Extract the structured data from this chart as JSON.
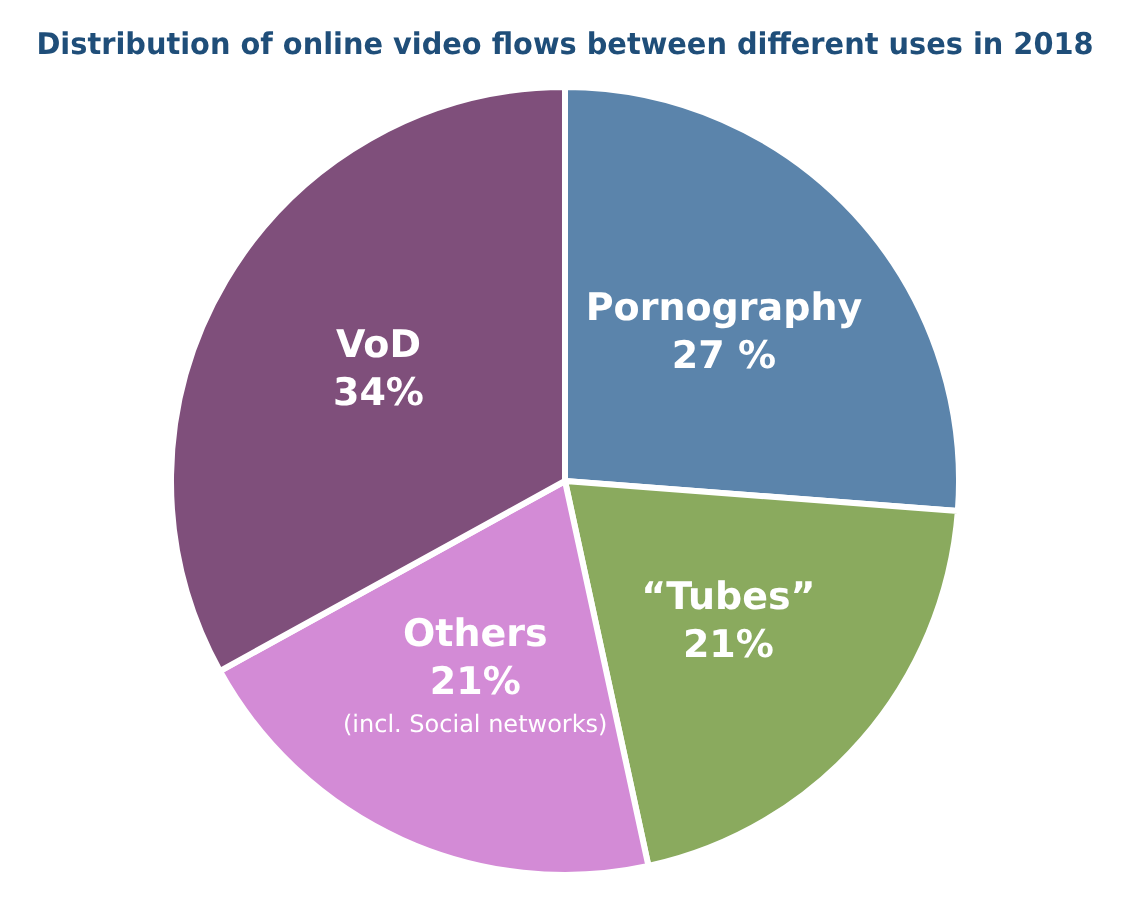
{
  "chart_data": {
    "type": "pie",
    "title": "Distribution of online video flows between different uses in 2018",
    "categories": [
      "Pornography",
      "“Tubes”",
      "Others",
      "VoD"
    ],
    "values": [
      27,
      21,
      21,
      34
    ],
    "value_labels": [
      "27 %",
      "21%",
      "21%",
      "34%"
    ],
    "colors": [
      "#5b84ab",
      "#8aaa5e",
      "#d38bd6",
      "#7f4f7b"
    ],
    "annotations": [
      {
        "text": "(incl. Social networks)",
        "x": "Others"
      }
    ],
    "legend": false
  }
}
